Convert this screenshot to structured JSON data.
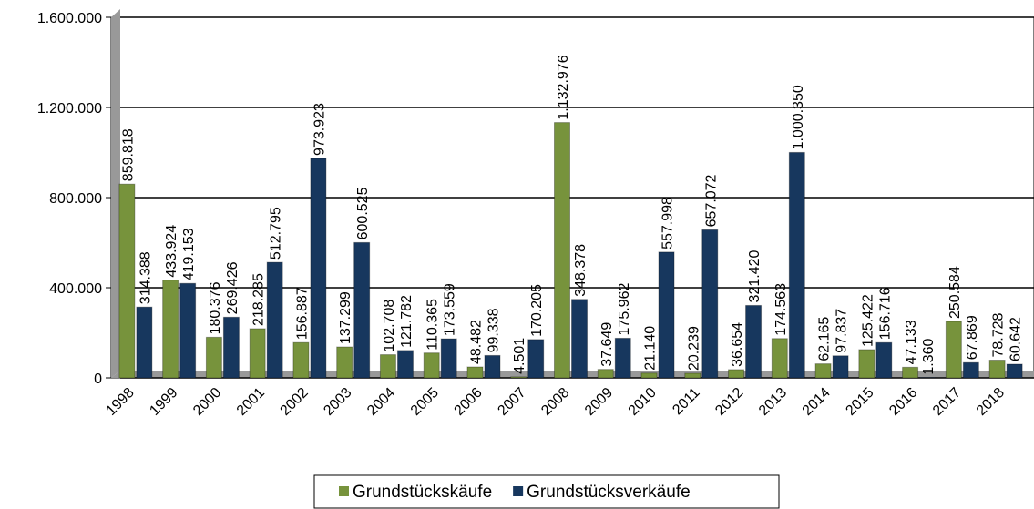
{
  "chart_data": {
    "type": "bar",
    "categories": [
      "1998",
      "1999",
      "2000",
      "2001",
      "2002",
      "2003",
      "2004",
      "2005",
      "2006",
      "2007",
      "2008",
      "2009",
      "2010",
      "2011",
      "2012",
      "2013",
      "2014",
      "2015",
      "2016",
      "2017",
      "2018"
    ],
    "series": [
      {
        "name": "Grundstückskäufe",
        "color": "#77933c",
        "values": [
          859818,
          433924,
          180376,
          218285,
          156887,
          137299,
          102708,
          110365,
          48482,
          4501,
          1132976,
          37649,
          21140,
          20239,
          36654,
          174563,
          62165,
          125422,
          47133,
          250584,
          78728
        ],
        "value_labels": [
          "859.818",
          "433.924",
          "180.376",
          "218.285",
          "156.887",
          "137.299",
          "102.708",
          "110.365",
          "48.482",
          "4.501",
          "1.132.976",
          "37.649",
          "21.140",
          "20.239",
          "36.654",
          "174.563",
          "62.165",
          "125.422",
          "47.133",
          "250.584",
          "78.728"
        ]
      },
      {
        "name": "Grundstücksverkäufe",
        "color": "#17375e",
        "values": [
          314388,
          419153,
          269426,
          512795,
          973923,
          600525,
          121782,
          173559,
          99338,
          170205,
          348378,
          175962,
          557998,
          657072,
          321420,
          1000350,
          97837,
          156716,
          1360,
          67869,
          60642
        ],
        "value_labels": [
          "314.388",
          "419.153",
          "269.426",
          "512.795",
          "973.923",
          "600.525",
          "121.782",
          "173.559",
          "99.338",
          "170.205",
          "348.378",
          "175.962",
          "557.998",
          "657.072",
          "321.420",
          "1.000.350",
          "97.837",
          "156.716",
          "1.360",
          "67.869",
          "60.642"
        ]
      }
    ],
    "ylim": [
      0,
      1600000
    ],
    "yticks": [
      0,
      {
        "value": 400000,
        "label": "400.000"
      },
      {
        "value": 800000,
        "label": "800.000"
      },
      {
        "value": 1200000,
        "label": "1.200.000"
      },
      {
        "value": 1600000,
        "label": "1.600.000"
      }
    ],
    "grid": true,
    "legend": "bottom"
  }
}
